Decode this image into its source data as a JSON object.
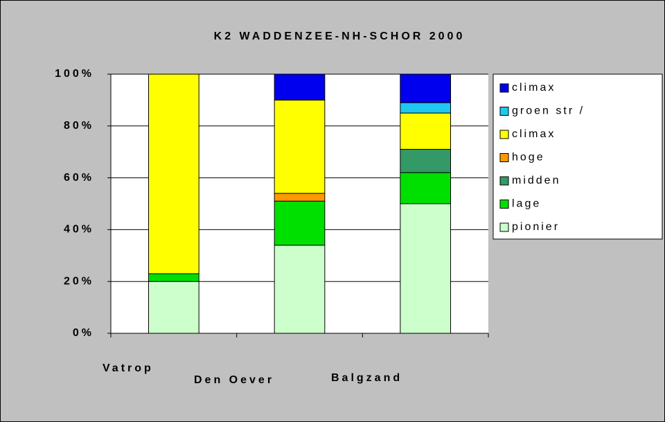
{
  "chart_data": {
    "type": "stacked_bar",
    "title": "K2 WADDENZEE-NH-SCHOR 2000",
    "categories": [
      "Vatrop",
      "Den Oever",
      "Balgzand"
    ],
    "series": [
      {
        "name": "pionier",
        "color": "#ccffcc",
        "values": [
          20,
          34,
          50
        ]
      },
      {
        "name": "lage",
        "color": "#00e000",
        "values": [
          3,
          17,
          12
        ]
      },
      {
        "name": "midden",
        "color": "#339966",
        "values": [
          0,
          0,
          9
        ]
      },
      {
        "name": "hoge",
        "color": "#ff9900",
        "values": [
          0,
          3,
          0
        ]
      },
      {
        "name": "climax",
        "color": "#ffff00",
        "values": [
          77,
          36,
          14
        ]
      },
      {
        "name": "groen str /",
        "color": "#1ec8f0",
        "values": [
          0,
          0,
          4
        ]
      },
      {
        "name": "climax",
        "color": "#0000ee",
        "values": [
          0,
          10,
          11
        ]
      }
    ],
    "ylim": [
      0,
      100
    ],
    "yticks": [
      {
        "value": 0,
        "label": "0%"
      },
      {
        "value": 20,
        "label": "20%"
      },
      {
        "value": 40,
        "label": "40%"
      },
      {
        "value": 60,
        "label": "60%"
      },
      {
        "value": 80,
        "label": "80%"
      },
      {
        "value": 100,
        "label": "100%"
      }
    ],
    "grid": true,
    "legend": "right"
  }
}
